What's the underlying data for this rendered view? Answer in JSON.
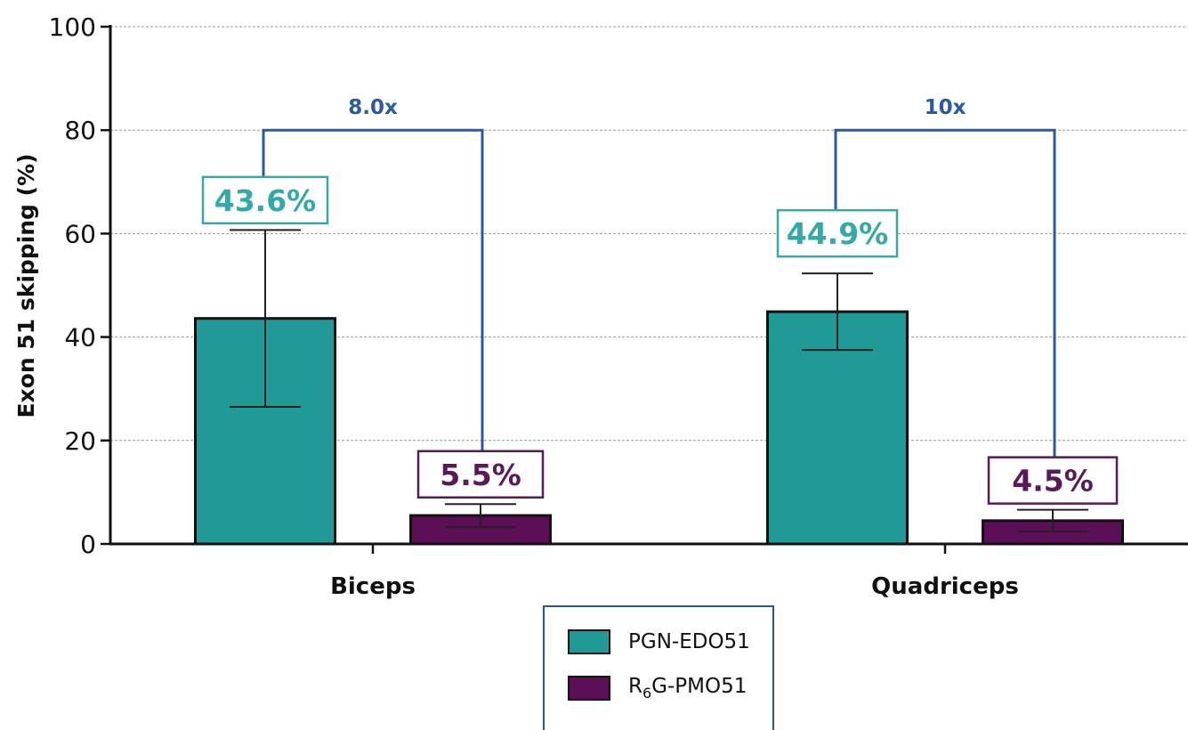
{
  "chart_data": {
    "type": "bar",
    "categories": [
      "Biceps",
      "Quadriceps"
    ],
    "ylabel": "Exon 51 skipping (%)",
    "xlabel": "",
    "ylim": [
      0,
      100
    ],
    "yticks": [
      0,
      20,
      40,
      60,
      80,
      100
    ],
    "grid": true,
    "legend_position": "bottom-center",
    "series": [
      {
        "name": "PGN-EDO51",
        "color": "#1f9a96",
        "values": [
          43.6,
          44.9
        ],
        "error": [
          17.1,
          7.4
        ],
        "labels": [
          "43.6%",
          "44.9%"
        ],
        "label_color": "#35a9a8"
      },
      {
        "name": "R6G-PMO51",
        "name_parts": {
          "base": "R",
          "sub": "6",
          "rest": "G-PMO51"
        },
        "color": "#5c0e56",
        "values": [
          5.5,
          4.5
        ],
        "error": [
          2.2,
          2.1
        ],
        "labels": [
          "5.5%",
          "4.5%"
        ],
        "label_color": "#5a1a5a"
      }
    ],
    "comparisons": [
      {
        "category": "Biceps",
        "label": "8.0x",
        "level": 80
      },
      {
        "category": "Quadriceps",
        "label": "10x",
        "level": 80
      }
    ],
    "comparison_color": "#2a5aa0"
  }
}
